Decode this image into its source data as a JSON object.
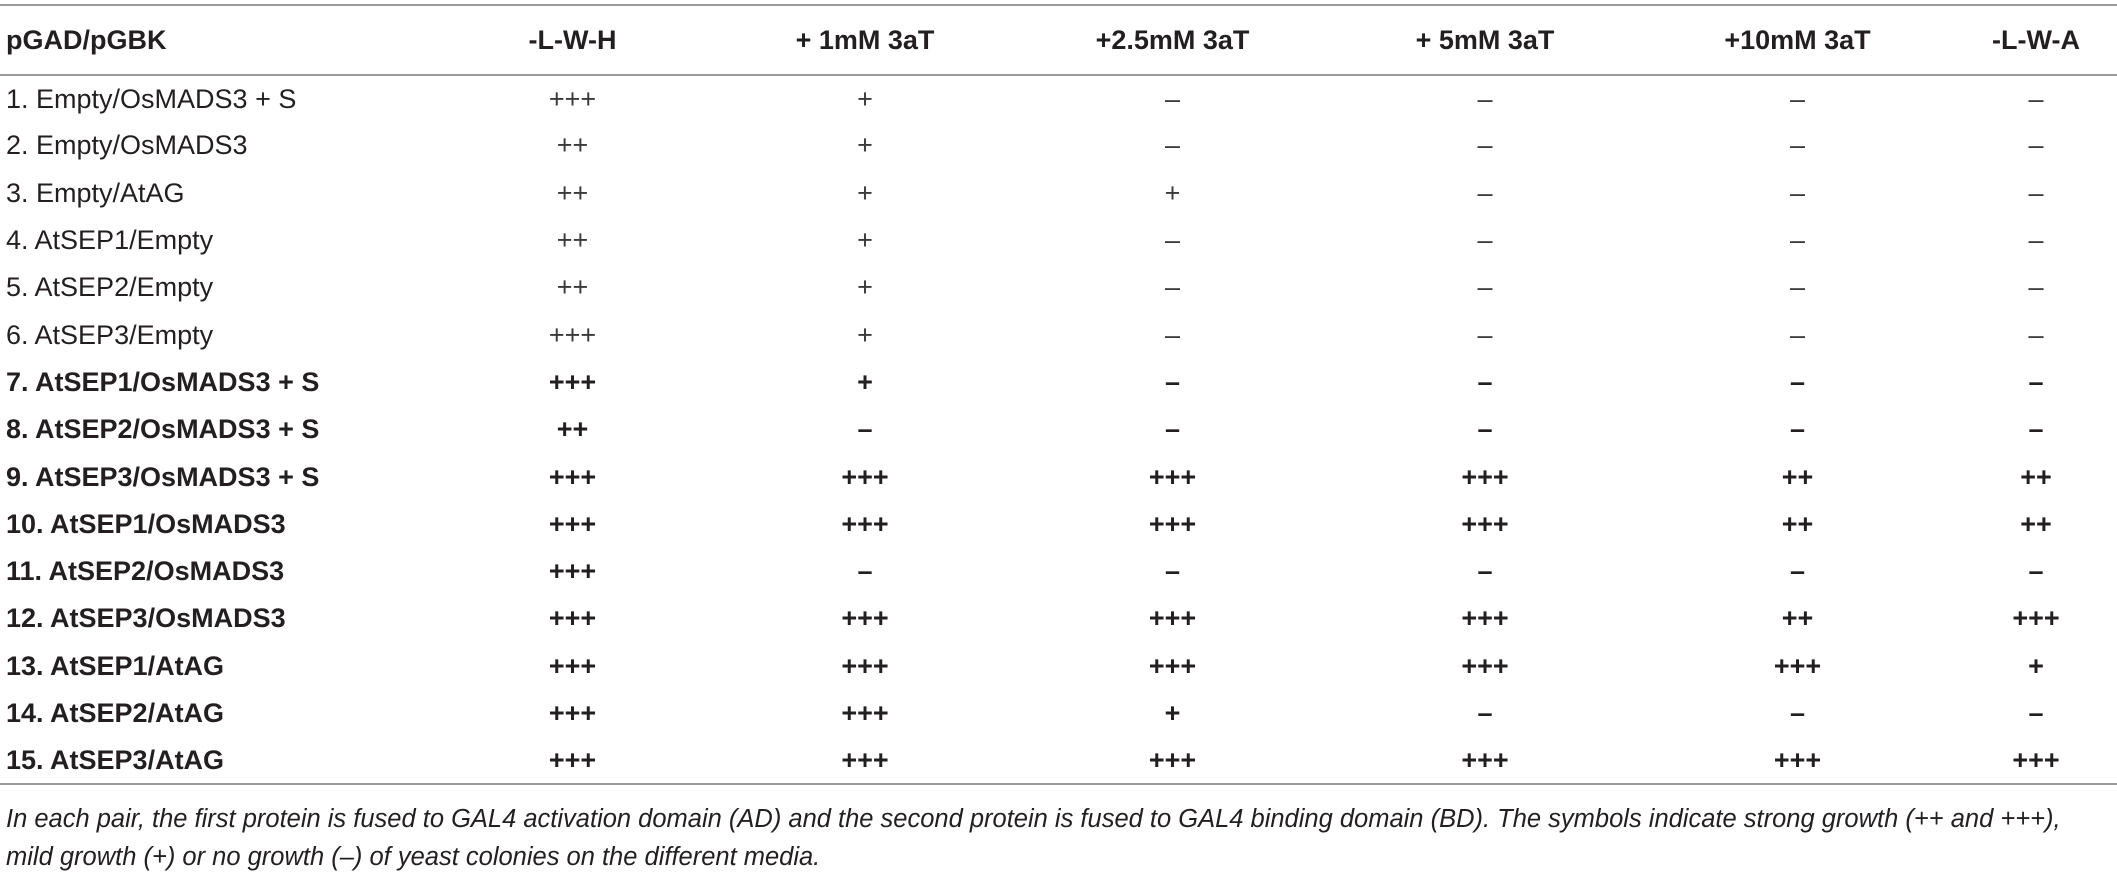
{
  "table": {
    "headers": [
      "pGAD/pGBK",
      "-L-W-H",
      "+ 1mM 3aT",
      "+2.5mM 3aT",
      "+ 5mM 3aT",
      "+10mM 3aT",
      "-L-W-A"
    ],
    "rows": [
      {
        "label": "1. Empty/OsMADS3 + S",
        "bold": false,
        "values": [
          "+++",
          "+",
          "–",
          "–",
          "–",
          "–"
        ]
      },
      {
        "label": "2. Empty/OsMADS3",
        "bold": false,
        "values": [
          "++",
          "+",
          "–",
          "–",
          "–",
          "–"
        ]
      },
      {
        "label": "3. Empty/AtAG",
        "bold": false,
        "values": [
          "++",
          "+",
          "+",
          "–",
          "–",
          "–"
        ]
      },
      {
        "label": "4. AtSEP1/Empty",
        "bold": false,
        "values": [
          "++",
          "+",
          "–",
          "–",
          "–",
          "–"
        ]
      },
      {
        "label": "5. AtSEP2/Empty",
        "bold": false,
        "values": [
          "++",
          "+",
          "–",
          "–",
          "–",
          "–"
        ]
      },
      {
        "label": "6. AtSEP3/Empty",
        "bold": false,
        "values": [
          "+++",
          "+",
          "–",
          "–",
          "–",
          "–"
        ]
      },
      {
        "label": "7. AtSEP1/OsMADS3 + S",
        "bold": true,
        "values": [
          "+++",
          "+",
          "–",
          "–",
          "–",
          "–"
        ]
      },
      {
        "label": "8. AtSEP2/OsMADS3 + S",
        "bold": true,
        "values": [
          "++",
          "–",
          "–",
          "–",
          "–",
          "–"
        ]
      },
      {
        "label": "9. AtSEP3/OsMADS3 + S",
        "bold": true,
        "values": [
          "+++",
          "+++",
          "+++",
          "+++",
          "++",
          "++"
        ]
      },
      {
        "label": "10. AtSEP1/OsMADS3",
        "bold": true,
        "values": [
          "+++",
          "+++",
          "+++",
          "+++",
          "++",
          "++"
        ]
      },
      {
        "label": "11. AtSEP2/OsMADS3",
        "bold": true,
        "values": [
          "+++",
          "–",
          "–",
          "–",
          "–",
          "–"
        ]
      },
      {
        "label": "12. AtSEP3/OsMADS3",
        "bold": true,
        "values": [
          "+++",
          "+++",
          "+++",
          "+++",
          "++",
          "+++"
        ]
      },
      {
        "label": "13. AtSEP1/AtAG",
        "bold": true,
        "values": [
          "+++",
          "+++",
          "+++",
          "+++",
          "+++",
          "+"
        ]
      },
      {
        "label": "14. AtSEP2/AtAG",
        "bold": true,
        "values": [
          "+++",
          "+++",
          "+",
          "–",
          "–",
          "–"
        ]
      },
      {
        "label": "15. AtSEP3/AtAG",
        "bold": true,
        "values": [
          "+++",
          "+++",
          "+++",
          "+++",
          "+++",
          "+++"
        ]
      }
    ]
  },
  "footnote": "In each pair, the first protein is fused to GAL4 activation domain (AD) and the second protein is fused to GAL4 binding domain (BD). The symbols indicate strong growth (++ and +++), mild growth (+) or no growth (–) of yeast colonies on the different media."
}
